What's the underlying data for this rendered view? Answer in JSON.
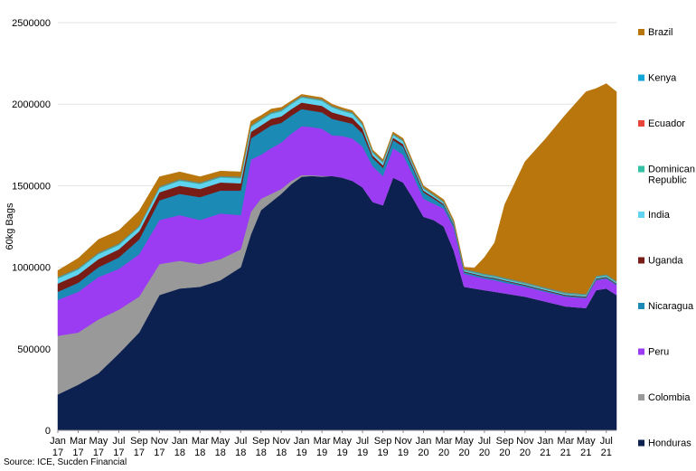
{
  "chart_data": {
    "type": "area",
    "stacked": true,
    "ylabel": "60kg Bags",
    "ylim": [
      0,
      2500000
    ],
    "yticks": [
      0,
      500000,
      1000000,
      1500000,
      2000000,
      2500000
    ],
    "ytick_labels": [
      "0",
      "500000",
      "1000000",
      "1500000",
      "2000000",
      "2500000"
    ],
    "grid": true,
    "legend_placement": "right",
    "x_start": "Jan 17",
    "x_end": "Aug 21",
    "x_month_span": [
      0,
      55
    ],
    "xtick_labels": [
      [
        "Jan",
        "17"
      ],
      [
        "Mar",
        "17"
      ],
      [
        "May",
        "17"
      ],
      [
        "Jul",
        "17"
      ],
      [
        "Sep",
        "17"
      ],
      [
        "Nov",
        "17"
      ],
      [
        "Jan",
        "18"
      ],
      [
        "Mar",
        "18"
      ],
      [
        "May",
        "18"
      ],
      [
        "Jul",
        "18"
      ],
      [
        "Sep",
        "18"
      ],
      [
        "Nov",
        "18"
      ],
      [
        "Jan",
        "19"
      ],
      [
        "Mar",
        "19"
      ],
      [
        "May",
        "19"
      ],
      [
        "Jul",
        "19"
      ],
      [
        "Sep",
        "19"
      ],
      [
        "Nov",
        "19"
      ],
      [
        "Jan",
        "20"
      ],
      [
        "Mar",
        "20"
      ],
      [
        "May",
        "20"
      ],
      [
        "Jul",
        "20"
      ],
      [
        "Sep",
        "20"
      ],
      [
        "Nov",
        "20"
      ],
      [
        "Jan",
        "21"
      ],
      [
        "Mar",
        "21"
      ],
      [
        "May",
        "21"
      ],
      [
        "Jul",
        "21"
      ]
    ],
    "x": [
      0,
      2,
      4,
      6,
      8,
      10,
      12,
      14,
      16,
      18,
      19,
      20,
      21,
      22,
      23,
      24,
      25,
      26,
      27,
      28,
      29,
      30,
      31,
      32,
      33,
      34,
      35,
      36,
      37,
      38,
      39,
      40,
      41,
      42,
      43,
      44,
      46,
      48,
      50,
      52,
      53,
      54,
      55
    ],
    "series": [
      {
        "name": "Honduras",
        "color": "#0c2150",
        "values": [
          220000,
          280000,
          350000,
          470000,
          600000,
          830000,
          870000,
          880000,
          920000,
          1000000,
          1200000,
          1350000,
          1400000,
          1450000,
          1510000,
          1555000,
          1560000,
          1555000,
          1560000,
          1550000,
          1530000,
          1490000,
          1400000,
          1380000,
          1550000,
          1520000,
          1420000,
          1310000,
          1290000,
          1250000,
          1100000,
          880000,
          870000,
          860000,
          850000,
          840000,
          820000,
          790000,
          760000,
          750000,
          860000,
          870000,
          830000
        ]
      },
      {
        "name": "Colombia",
        "color": "#999999",
        "values": [
          360000,
          320000,
          330000,
          270000,
          220000,
          190000,
          170000,
          140000,
          130000,
          110000,
          140000,
          70000,
          50000,
          30000,
          20000,
          10000,
          5000,
          5000,
          0,
          0,
          0,
          0,
          0,
          0,
          0,
          0,
          0,
          0,
          0,
          0,
          0,
          0,
          0,
          0,
          0,
          0,
          0,
          0,
          0,
          0,
          0,
          0,
          0
        ]
      },
      {
        "name": "Peru",
        "color": "#9b3bf2",
        "values": [
          220000,
          250000,
          260000,
          250000,
          260000,
          270000,
          280000,
          270000,
          280000,
          210000,
          320000,
          270000,
          280000,
          285000,
          290000,
          300000,
          295000,
          290000,
          250000,
          255000,
          260000,
          250000,
          220000,
          180000,
          180000,
          170000,
          140000,
          110000,
          100000,
          110000,
          140000,
          80000,
          75000,
          70000,
          70000,
          65000,
          60000,
          60000,
          60000,
          60000,
          60000,
          60000,
          60000
        ]
      },
      {
        "name": "Nicaragua",
        "color": "#1b8ab5",
        "values": [
          50000,
          55000,
          60000,
          70000,
          90000,
          120000,
          130000,
          140000,
          140000,
          150000,
          130000,
          140000,
          140000,
          120000,
          110000,
          105000,
          100000,
          100000,
          100000,
          90000,
          90000,
          80000,
          50000,
          50000,
          50000,
          50000,
          40000,
          40000,
          30000,
          20000,
          15000,
          10000,
          10000,
          10000,
          10000,
          10000,
          8000,
          6000,
          6000,
          6000,
          6000,
          6000,
          6000
        ]
      },
      {
        "name": "Uganda",
        "color": "#7a1c16",
        "values": [
          50000,
          50000,
          50000,
          50000,
          50000,
          50000,
          50000,
          50000,
          50000,
          45000,
          40000,
          40000,
          40000,
          40000,
          40000,
          40000,
          40000,
          40000,
          40000,
          38000,
          35000,
          30000,
          15000,
          15000,
          15000,
          15000,
          12000,
          10000,
          10000,
          8000,
          6000,
          5000,
          5000,
          5000,
          5000,
          5000,
          5000,
          5000,
          5000,
          5000,
          5000,
          5000,
          5000
        ]
      },
      {
        "name": "India",
        "color": "#5fd3f0",
        "values": [
          30000,
          30000,
          30000,
          25000,
          25000,
          25000,
          30000,
          30000,
          30000,
          30000,
          30000,
          30000,
          30000,
          30000,
          30000,
          30000,
          30000,
          30000,
          30000,
          25000,
          25000,
          20000,
          15000,
          15000,
          15000,
          15000,
          10000,
          10000,
          8000,
          6000,
          5000,
          5000,
          5000,
          5000,
          5000,
          5000,
          5000,
          5000,
          5000,
          5000,
          5000,
          5000,
          5000
        ]
      },
      {
        "name": "Dominican Republic",
        "color": "#34c1a5",
        "values": [
          5000,
          5000,
          5000,
          5000,
          5000,
          5000,
          5000,
          5000,
          5000,
          5000,
          5000,
          5000,
          5000,
          5000,
          5000,
          5000,
          5000,
          5000,
          5000,
          5000,
          5000,
          5000,
          5000,
          5000,
          5000,
          5000,
          5000,
          5000,
          5000,
          5000,
          5000,
          5000,
          5000,
          5000,
          5000,
          5000,
          5000,
          5000,
          5000,
          5000,
          5000,
          5000,
          5000
        ]
      },
      {
        "name": "Ecuador",
        "color": "#e8463b",
        "values": [
          2000,
          2000,
          2000,
          2000,
          2000,
          2000,
          2000,
          2000,
          2000,
          2000,
          2000,
          2000,
          2000,
          2000,
          2000,
          2000,
          2000,
          2000,
          2000,
          2000,
          2000,
          2000,
          2000,
          2000,
          2000,
          2000,
          2000,
          2000,
          2000,
          2000,
          2000,
          2000,
          2000,
          2000,
          2000,
          2000,
          2000,
          2000,
          2000,
          2000,
          2000,
          2000,
          2000
        ]
      },
      {
        "name": "Kenya",
        "color": "#12a5d8",
        "values": [
          3000,
          3000,
          3000,
          3000,
          3000,
          3000,
          3000,
          3000,
          3000,
          3000,
          3000,
          3000,
          3000,
          3000,
          3000,
          3000,
          3000,
          3000,
          3000,
          3000,
          3000,
          3000,
          3000,
          3000,
          3000,
          3000,
          3000,
          3000,
          3000,
          3000,
          3000,
          3000,
          3000,
          3000,
          3000,
          3000,
          3000,
          3000,
          3000,
          3000,
          3000,
          3000,
          3000
        ]
      },
      {
        "name": "Brazil",
        "color": "#b8760d",
        "values": [
          40000,
          60000,
          80000,
          80000,
          90000,
          60000,
          45000,
          35000,
          30000,
          30000,
          25000,
          20000,
          20000,
          15000,
          10000,
          10000,
          10000,
          10000,
          10000,
          10000,
          10000,
          10000,
          10000,
          10000,
          10000,
          10000,
          10000,
          10000,
          10000,
          10000,
          10000,
          10000,
          20000,
          100000,
          200000,
          450000,
          740000,
          910000,
          1090000,
          1240000,
          1150000,
          1170000,
          1160000
        ]
      }
    ],
    "legend_order": [
      "Brazil",
      "Kenya",
      "Ecuador",
      "Dominican Republic",
      "India",
      "Uganda",
      "Nicaragua",
      "Peru",
      "Colombia",
      "Honduras"
    ]
  },
  "source_note": "Source: ICE, Sucden Financial"
}
